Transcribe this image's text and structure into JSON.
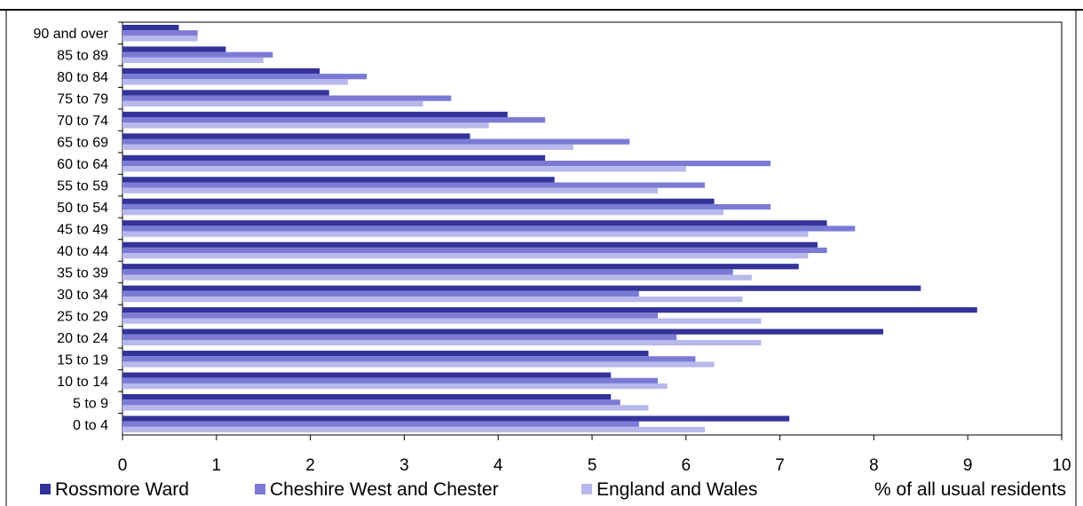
{
  "chart_data": {
    "type": "bar",
    "orientation": "horizontal",
    "xlabel": "% of all usual residents",
    "xlim": [
      0,
      10
    ],
    "xticks": [
      "0",
      "1",
      "2",
      "3",
      "4",
      "5",
      "6",
      "7",
      "8",
      "9",
      "10"
    ],
    "grid": false,
    "legend_position": "bottom",
    "categories": [
      "90 and over",
      "85 to 89",
      "80 to 84",
      "75 to 79",
      "70 to 74",
      "65 to 69",
      "60 to 64",
      "55 to 59",
      "50 to 54",
      "45 to 49",
      "40 to 44",
      "35 to 39",
      "30 to 34",
      "25 to 29",
      "20 to 24",
      "15 to 19",
      "10 to 14",
      "5 to 9",
      "0 to 4"
    ],
    "series": [
      {
        "name": "Rossmore Ward",
        "color": "#333399",
        "values": [
          0.6,
          1.1,
          2.1,
          2.2,
          4.1,
          3.7,
          4.5,
          4.6,
          6.3,
          7.5,
          7.4,
          7.2,
          8.5,
          9.1,
          8.1,
          5.6,
          5.2,
          5.2,
          7.1
        ]
      },
      {
        "name": "Cheshire West and Chester",
        "color": "#7b7bd6",
        "values": [
          0.8,
          1.6,
          2.6,
          3.5,
          4.5,
          5.4,
          6.9,
          6.2,
          6.9,
          7.8,
          7.5,
          6.5,
          5.5,
          5.7,
          5.9,
          6.1,
          5.7,
          5.3,
          5.5
        ]
      },
      {
        "name": "England and Wales",
        "color": "#b8b8ec",
        "values": [
          0.8,
          1.5,
          2.4,
          3.2,
          3.9,
          4.8,
          6.0,
          5.7,
          6.4,
          7.3,
          7.3,
          6.7,
          6.6,
          6.8,
          6.8,
          6.3,
          5.8,
          5.6,
          6.2
        ]
      }
    ]
  }
}
